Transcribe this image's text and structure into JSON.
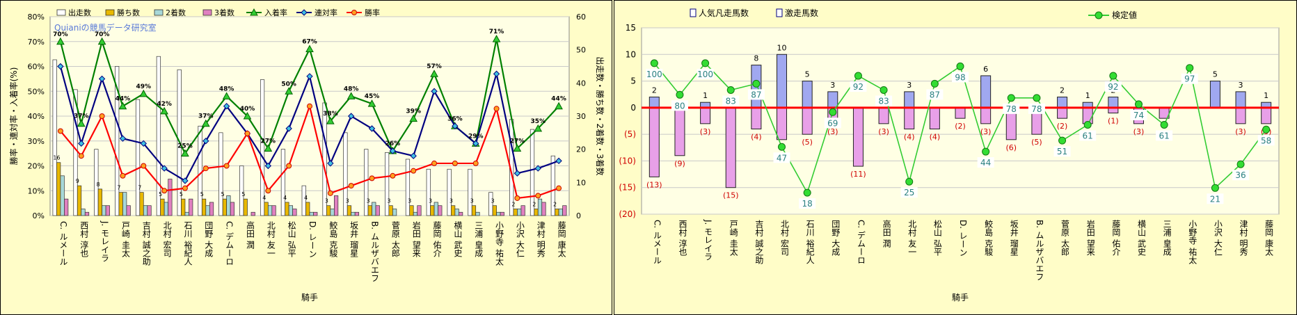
{
  "watermark": "Quianiの競馬データ研究室",
  "jockeys": [
    "C. ルメール",
    "西村 淳也",
    "J. モレイラ",
    "戸崎 圭太",
    "吉村 誠之助",
    "北村 宏司",
    "石川 裕紀人",
    "団野 大成",
    "C. デムーロ",
    "高田 潤",
    "北村 友一",
    "松山 弘平",
    "D. レーン",
    "鮫島 克駿",
    "坂井 瑠星",
    "B. ムルザバエフ",
    "菅原 太郎",
    "岩田 望来",
    "藤岡 佑介",
    "横山 武史",
    "三浦 皇成",
    "小野寺 祐太",
    "小沢 大仁",
    "津村 明秀",
    "藤岡 康太"
  ],
  "chart_data": [
    {
      "type": "bar",
      "xlabel": "騎手",
      "ylabel_left": "勝率・連対率・入着率(%)",
      "ylabel_right": "出走数・勝ち数・2着数・3着数",
      "ylim_left": [
        0,
        80
      ],
      "ylim_right": [
        0,
        60
      ],
      "yticks_left": [
        "0%",
        "10%",
        "20%",
        "30%",
        "40%",
        "50%",
        "60%",
        "70%",
        "80%"
      ],
      "yticks_right": [
        "0",
        "10",
        "20",
        "30",
        "40",
        "50",
        "60"
      ],
      "legend_position": "top",
      "bar_series": [
        {
          "name": "出走数",
          "color": "#ffffff",
          "values": [
            47,
            38,
            20,
            45,
            35,
            48,
            44,
            27,
            25,
            15,
            41,
            20,
            9,
            34,
            25,
            20,
            19,
            17,
            14,
            14,
            14,
            7,
            29,
            26,
            18
          ]
        },
        {
          "name": "勝ち数",
          "color": "#e8b800",
          "values": [
            16,
            9,
            8,
            7,
            7,
            5,
            5,
            5,
            5,
            5,
            4,
            4,
            4,
            3,
            3,
            3,
            3,
            3,
            3,
            3,
            3,
            3,
            2,
            2,
            2
          ]
        },
        {
          "name": "2着数",
          "color": "#a8d8d8",
          "values": [
            12,
            2,
            3,
            7,
            3,
            4,
            1,
            3,
            6,
            0,
            3,
            3,
            1,
            2,
            1,
            4,
            2,
            1,
            4,
            2,
            1,
            1,
            2,
            5,
            2
          ]
        },
        {
          "name": "3着数",
          "color": "#e080c0",
          "values": [
            5,
            1,
            3,
            3,
            3,
            11,
            5,
            4,
            4,
            1,
            3,
            2,
            1,
            6,
            1,
            3,
            0,
            3,
            3,
            1,
            0,
            1,
            3,
            4,
            3
          ]
        }
      ],
      "line_series": [
        {
          "name": "入着率",
          "color": "#008000",
          "values": [
            70,
            37,
            70,
            44,
            49,
            42,
            25,
            37,
            48,
            40,
            27,
            50,
            67,
            38,
            48,
            45,
            26,
            39,
            57,
            36,
            29,
            71,
            27,
            35,
            44
          ]
        },
        {
          "name": "連対率",
          "color": "#000080",
          "values": [
            60,
            29,
            55,
            31,
            29,
            19,
            14,
            30,
            44,
            33,
            20,
            35,
            56,
            21,
            40,
            35,
            26,
            24,
            50,
            36,
            29,
            57,
            17,
            19,
            22
          ]
        },
        {
          "name": "勝率",
          "color": "#ff0000",
          "values": [
            34,
            24,
            40,
            16,
            20,
            10,
            11,
            19,
            20,
            33,
            10,
            20,
            44,
            9,
            12,
            15,
            16,
            18,
            21,
            21,
            21,
            43,
            7,
            8,
            11
          ]
        }
      ],
      "annotations": {
        "rate_labels": [
          "70%",
          "37%",
          "70%",
          "44%",
          "49%",
          "42%",
          "25%",
          "37%",
          "48%",
          "40%",
          "27%",
          "50%",
          "67%",
          "38%",
          "48%",
          "45%",
          "26%",
          "39%",
          "57%",
          "36%",
          "29%",
          "71%",
          "27%",
          "35%",
          "44%"
        ],
        "win_labels": [
          "16",
          "9",
          "8",
          "7",
          "7",
          "5",
          "5",
          "5",
          "5",
          "5",
          "4",
          "4",
          "4",
          "3",
          "3",
          "3",
          "3",
          "3",
          "3",
          "3",
          "3",
          "3",
          "2",
          "2",
          "2"
        ]
      }
    },
    {
      "type": "bar",
      "xlabel": "騎手",
      "ylim": [
        -20,
        15
      ],
      "yticks": [
        "15",
        "10",
        "5",
        "0",
        "(5)",
        "(10)",
        "(15)",
        "(20)"
      ],
      "legend_position": "top",
      "bar_series": [
        {
          "name": "人気凡走馬数",
          "color": "#e8a0e8",
          "values": [
            -13,
            -9,
            -3,
            -15,
            -4,
            -6,
            -5,
            -3,
            -11,
            -3,
            -4,
            -4,
            -2,
            -3,
            -6,
            -5,
            -2,
            -3,
            -1,
            -3,
            -2,
            0,
            0,
            -3,
            -3
          ]
        },
        {
          "name": "激走馬数",
          "color": "#a0a8f0",
          "values": [
            2,
            0,
            1,
            0,
            8,
            10,
            5,
            3,
            0,
            0,
            3,
            0,
            0,
            6,
            0,
            0,
            2,
            1,
            2,
            0,
            0,
            0,
            5,
            3,
            1
          ]
        }
      ],
      "line_series": [
        {
          "name": "検定値",
          "color": "#33cc33",
          "values": [
            100,
            80,
            100,
            83,
            87,
            47,
            18,
            69,
            92,
            83,
            25,
            87,
            98,
            44,
            78,
            78,
            51,
            61,
            92,
            74,
            61,
            97,
            21,
            36,
            58
          ]
        }
      ],
      "annotations": {
        "positive_labels": [
          "2",
          "",
          "1",
          "",
          "8",
          "10",
          "5",
          "3",
          "",
          "",
          "3",
          "",
          "",
          "6",
          "",
          "",
          "2",
          "1",
          "2",
          "",
          "",
          "",
          "5",
          "3",
          "1"
        ],
        "negative_labels": [
          "(13)",
          "(9)",
          "(3)",
          "(15)",
          "(4)",
          "",
          "(5)",
          "(3)",
          "(11)",
          "(3)",
          "(4)",
          "(4)",
          "(2)",
          "(3)",
          "(6)",
          "(5)",
          "(2)",
          "",
          "(1)",
          "(3)",
          "",
          "",
          "",
          "(3)",
          "(3)"
        ]
      }
    }
  ]
}
